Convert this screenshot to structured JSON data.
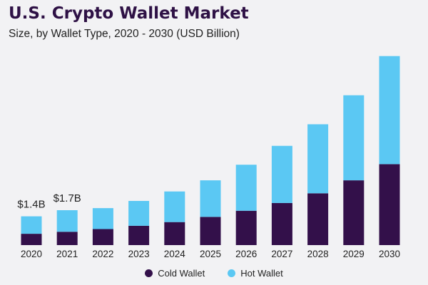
{
  "chart_data": {
    "type": "bar",
    "stacked": true,
    "title": "U.S. Crypto Wallet Market",
    "subtitle": "Size, by Wallet Type, 2020 - 2030 (USD Billion)",
    "categories": [
      "2020",
      "2021",
      "2022",
      "2023",
      "2024",
      "2025",
      "2026",
      "2027",
      "2028",
      "2029",
      "2030"
    ],
    "series": [
      {
        "name": "Cold Wallet",
        "color": "#33104a",
        "values": [
          0.55,
          0.65,
          0.78,
          0.94,
          1.12,
          1.37,
          1.67,
          2.05,
          2.52,
          3.15,
          3.94
        ]
      },
      {
        "name": "Hot Wallet",
        "color": "#5bc8f3",
        "values": [
          0.85,
          1.05,
          1.02,
          1.21,
          1.49,
          1.78,
          2.24,
          2.78,
          3.36,
          4.14,
          5.26
        ]
      }
    ],
    "annotations": [
      {
        "category": "2020",
        "text": "$1.4B"
      },
      {
        "category": "2021",
        "text": "$1.7B"
      }
    ],
    "ylim": [
      0,
      9.5
    ],
    "legend_position": "bottom-center",
    "grid": false
  }
}
